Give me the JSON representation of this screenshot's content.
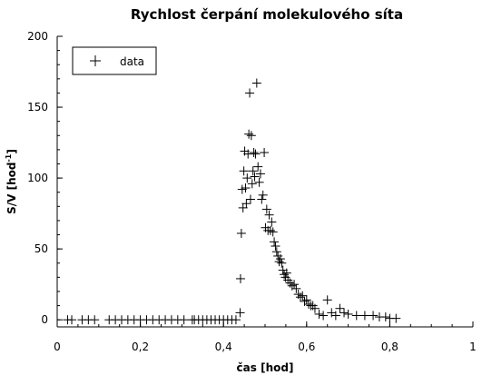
{
  "chart_data": {
    "type": "scatter",
    "title": "Rychlost čerpání molekulového síta",
    "xlabel": "čas [hod]",
    "ylabel_main": "S/V [hod",
    "ylabel_sup": "-1",
    "ylabel_close": "]",
    "xlim": [
      0,
      1
    ],
    "ylim": [
      -5,
      200
    ],
    "xticks": [
      0,
      0.2,
      0.4,
      0.6,
      0.8,
      1
    ],
    "xtick_labels": [
      "0",
      "0,2",
      "0,4",
      "0,6",
      "0,8",
      "1"
    ],
    "yticks": [
      0,
      50,
      100,
      150,
      200
    ],
    "ytick_labels": [
      "0",
      "50",
      "100",
      "150",
      "200"
    ],
    "grid": false,
    "legend_position": "top-left",
    "marker": "+",
    "marker_color": "#000000",
    "series": [
      {
        "name": "data",
        "x": [
          0.025,
          0.035,
          0.06,
          0.075,
          0.09,
          0.125,
          0.14,
          0.155,
          0.17,
          0.185,
          0.2,
          0.215,
          0.23,
          0.245,
          0.26,
          0.275,
          0.29,
          0.305,
          0.325,
          0.33,
          0.34,
          0.35,
          0.36,
          0.37,
          0.38,
          0.39,
          0.4,
          0.41,
          0.42,
          0.43,
          0.44,
          0.441,
          0.443,
          0.445,
          0.447,
          0.449,
          0.451,
          0.453,
          0.455,
          0.457,
          0.459,
          0.461,
          0.463,
          0.465,
          0.467,
          0.469,
          0.471,
          0.473,
          0.475,
          0.477,
          0.48,
          0.483,
          0.486,
          0.489,
          0.492,
          0.495,
          0.498,
          0.501,
          0.504,
          0.507,
          0.51,
          0.513,
          0.516,
          0.519,
          0.522,
          0.525,
          0.528,
          0.531,
          0.534,
          0.537,
          0.54,
          0.543,
          0.546,
          0.549,
          0.552,
          0.555,
          0.56,
          0.565,
          0.57,
          0.575,
          0.58,
          0.585,
          0.59,
          0.595,
          0.6,
          0.605,
          0.61,
          0.615,
          0.62,
          0.63,
          0.64,
          0.65,
          0.66,
          0.67,
          0.68,
          0.69,
          0.7,
          0.72,
          0.74,
          0.76,
          0.775,
          0.79,
          0.8,
          0.815
        ],
        "y": [
          0,
          0,
          0,
          0,
          0,
          0,
          0,
          0,
          0,
          0,
          0,
          0,
          0,
          0,
          0,
          0,
          0,
          0,
          0,
          0,
          0,
          0,
          0,
          0,
          0,
          0,
          0,
          0,
          0,
          0,
          5,
          29,
          61,
          92,
          79,
          105,
          119,
          93,
          82,
          100,
          117,
          131,
          160,
          85,
          130,
          96,
          105,
          118,
          101,
          117,
          167,
          108,
          97,
          103,
          85,
          88,
          118,
          65,
          78,
          63,
          74,
          63,
          69,
          62,
          55,
          52,
          48,
          45,
          41,
          43,
          40,
          35,
          32,
          30,
          33,
          28,
          26,
          24,
          25,
          22,
          18,
          16,
          17,
          13,
          14,
          11,
          10,
          10,
          8,
          4,
          3,
          14,
          5,
          3,
          8,
          5,
          4,
          3,
          3,
          3,
          2,
          2,
          1,
          1
        ]
      }
    ]
  }
}
